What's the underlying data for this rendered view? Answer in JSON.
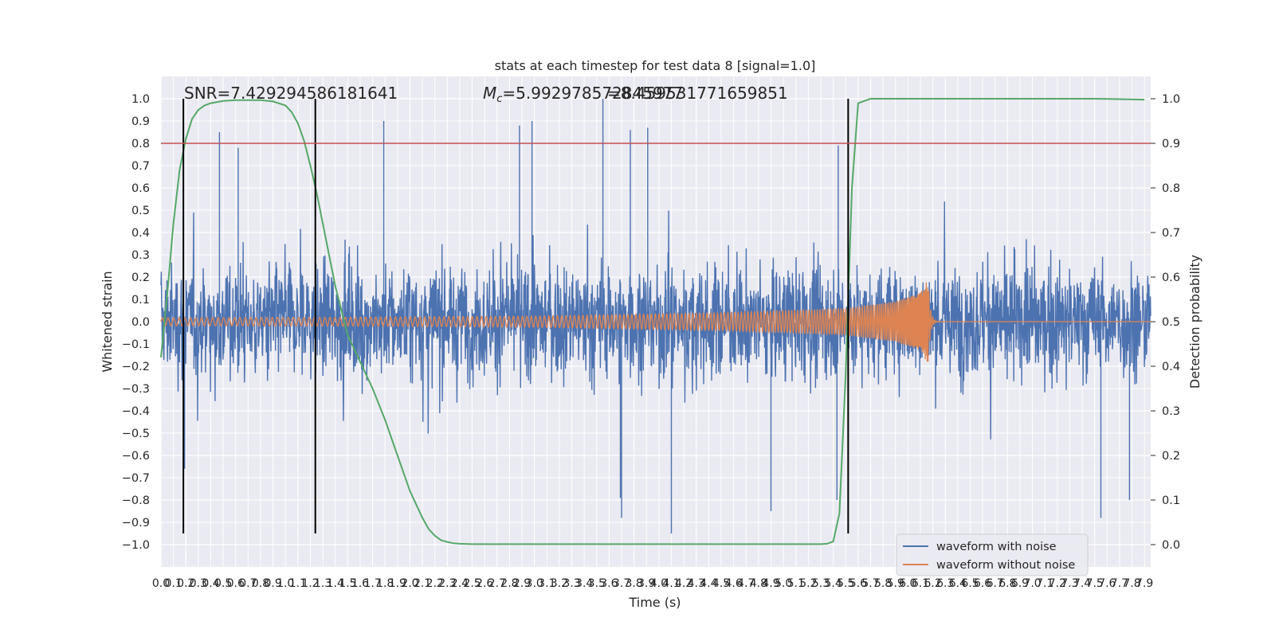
{
  "chart_data": {
    "type": "line",
    "title": "stats at each timestep for test data 8 [signal=1.0]",
    "xlabel": "Time (s)",
    "ylabel": "Whitened strain",
    "ylabel_right": "Detection probability",
    "xlim": [
      0.0,
      7.95
    ],
    "ylim": [
      -1.1,
      1.1
    ],
    "ylim_right": [
      -0.05,
      1.05
    ],
    "x_ticks": [
      0.0,
      0.1,
      0.2,
      0.3,
      0.4,
      0.5,
      0.6,
      0.7,
      0.8,
      0.9,
      1.0,
      1.1,
      1.2,
      1.3,
      1.4,
      1.5,
      1.6,
      1.7,
      1.8,
      1.9,
      2.0,
      2.1,
      2.2,
      2.3,
      2.4,
      2.5,
      2.6,
      2.7,
      2.8,
      2.9,
      3.0,
      3.1,
      3.2,
      3.3,
      3.4,
      3.5,
      3.6,
      3.7,
      3.8,
      3.9,
      4.0,
      4.1,
      4.2,
      4.3,
      4.4,
      4.5,
      4.6,
      4.7,
      4.8,
      4.9,
      5.0,
      5.1,
      5.2,
      5.3,
      5.4,
      5.5,
      5.6,
      5.7,
      5.8,
      5.9,
      6.0,
      6.1,
      6.2,
      6.3,
      6.4,
      6.5,
      6.6,
      6.7,
      6.8,
      6.9,
      7.0,
      7.1,
      7.2,
      7.3,
      7.4,
      7.5,
      7.6,
      7.7,
      7.8,
      7.9
    ],
    "y_ticks": [
      -1.0,
      -0.9,
      -0.8,
      -0.7,
      -0.6,
      -0.5,
      -0.4,
      -0.3,
      -0.2,
      -0.1,
      0.0,
      0.1,
      0.2,
      0.3,
      0.4,
      0.5,
      0.6,
      0.7,
      0.8,
      0.9,
      1.0
    ],
    "y_ticks_right": [
      0.0,
      0.1,
      0.2,
      0.3,
      0.4,
      0.5,
      0.6,
      0.7,
      0.8,
      0.9,
      1.0
    ],
    "annotations": [
      {
        "text": "SNR=7.429294586181641",
        "x": 0.2,
        "y": 1.03
      },
      {
        "text_mc": "M",
        "text_sub": "c",
        "text_rest": "=5.992978572845977",
        "x": 2.58,
        "y": 1.03
      },
      {
        "text": "=8.459531771659851",
        "x": 3.65,
        "y": 1.03
      }
    ],
    "threshold": {
      "y": 0.9,
      "axis": "right",
      "color": "#c44e52"
    },
    "vlines": [
      0.18,
      1.24,
      5.52
    ],
    "vline_range": [
      -0.95,
      1.0
    ],
    "series": [
      {
        "name": "waveform with noise",
        "color": "#4c72b0",
        "kind": "noise",
        "typical_range": [
          -0.45,
          0.45
        ],
        "peaks": [
          {
            "x": 0.47,
            "y": 0.85
          },
          {
            "x": 0.62,
            "y": 0.78
          },
          {
            "x": 1.79,
            "y": 0.9
          },
          {
            "x": 2.88,
            "y": 0.88
          },
          {
            "x": 2.98,
            "y": 0.9
          },
          {
            "x": 3.55,
            "y": 1.0
          },
          {
            "x": 3.77,
            "y": 0.86
          },
          {
            "x": 3.91,
            "y": 0.87
          },
          {
            "x": 5.44,
            "y": 0.79
          },
          {
            "x": 4.1,
            "y": -0.95
          },
          {
            "x": 3.7,
            "y": -0.88
          },
          {
            "x": 4.9,
            "y": -0.85
          },
          {
            "x": 7.55,
            "y": -0.88
          },
          {
            "x": 7.78,
            "y": -0.8
          },
          {
            "x": 3.69,
            "y": -0.79
          },
          {
            "x": 0.19,
            "y": -0.66
          },
          {
            "x": 5.43,
            "y": -0.8
          }
        ]
      },
      {
        "name": "waveform without noise",
        "color": "#dd8452",
        "kind": "chirp",
        "amplitude_points": [
          [
            0.0,
            0.018
          ],
          [
            1.5,
            0.02
          ],
          [
            3.0,
            0.025
          ],
          [
            4.5,
            0.04
          ],
          [
            5.5,
            0.06
          ],
          [
            5.9,
            0.09
          ],
          [
            6.1,
            0.13
          ],
          [
            6.15,
            0.18
          ]
        ],
        "merger_x": 6.16,
        "postmerger_min": -0.22
      },
      {
        "name": "detection probability",
        "color": "#55a868",
        "axis": "right",
        "x": [
          0.0,
          0.05,
          0.1,
          0.15,
          0.2,
          0.25,
          0.3,
          0.35,
          0.4,
          0.5,
          0.6,
          0.7,
          0.8,
          0.9,
          1.0,
          1.05,
          1.1,
          1.15,
          1.2,
          1.25,
          1.3,
          1.35,
          1.4,
          1.5,
          1.6,
          1.7,
          1.8,
          1.9,
          2.0,
          2.1,
          2.15,
          2.2,
          2.25,
          2.3,
          2.35,
          2.4,
          2.5,
          2.6,
          3.0,
          3.5,
          4.0,
          4.5,
          5.0,
          5.3,
          5.35,
          5.4,
          5.45,
          5.5,
          5.52,
          5.55,
          5.6,
          5.7,
          6.0,
          6.5,
          7.0,
          7.5,
          7.9
        ],
        "y": [
          0.42,
          0.56,
          0.72,
          0.84,
          0.91,
          0.955,
          0.975,
          0.985,
          0.99,
          0.995,
          0.997,
          0.997,
          0.997,
          0.994,
          0.985,
          0.97,
          0.945,
          0.905,
          0.85,
          0.79,
          0.72,
          0.65,
          0.58,
          0.47,
          0.41,
          0.35,
          0.28,
          0.2,
          0.12,
          0.06,
          0.035,
          0.02,
          0.01,
          0.006,
          0.003,
          0.002,
          0.001,
          0.001,
          0.001,
          0.001,
          0.001,
          0.001,
          0.001,
          0.001,
          0.002,
          0.007,
          0.07,
          0.38,
          0.55,
          0.8,
          0.99,
          1.0,
          1.0,
          1.0,
          1.0,
          1.0,
          0.998
        ]
      }
    ],
    "legend": {
      "placement": "lower-right",
      "entries": [
        "waveform with noise",
        "waveform without noise"
      ]
    }
  }
}
